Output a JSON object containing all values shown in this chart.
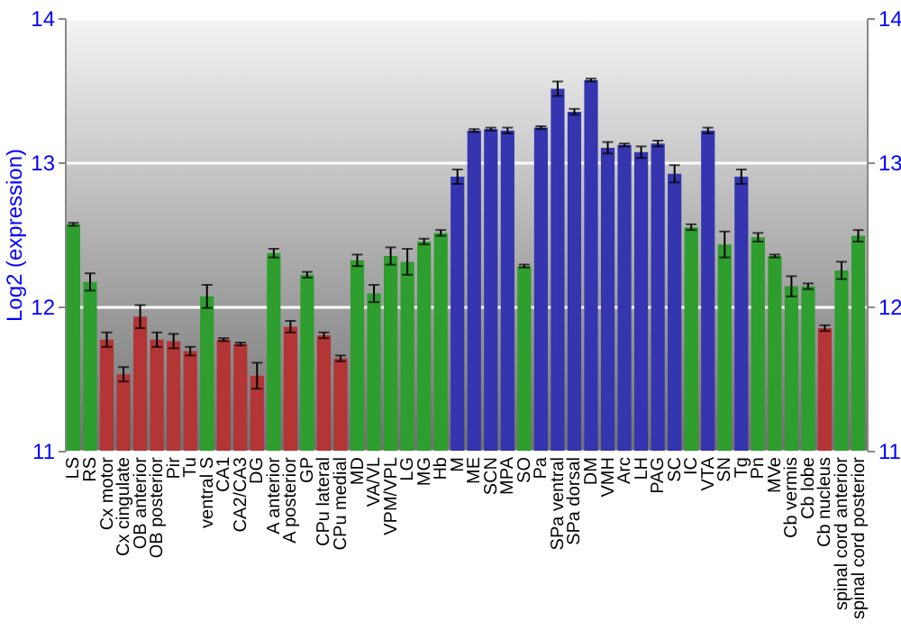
{
  "chart_data": {
    "type": "bar",
    "ylabel": "Log2 (expression)",
    "categories": [
      "LS",
      "RS",
      "Cx motor",
      "Cx cingulate",
      "OB anterior",
      "OB posterior",
      "Pir",
      "Tu",
      "ventral S",
      "CA1",
      "CA2/CA3",
      "DG",
      "A anterior",
      "A posterior",
      "GP",
      "CPu lateral",
      "CPu medial",
      "MD",
      "VA/VL",
      "VPM/VPL",
      "LG",
      "MG",
      "Hb",
      "M",
      "ME",
      "SCN",
      "MPA",
      "SO",
      "Pa",
      "SPa ventral",
      "SPa dorsal",
      "DM",
      "VMH",
      "Arc",
      "LH",
      "PAG",
      "SC",
      "IC",
      "VTA",
      "SN",
      "Tg",
      "Pn",
      "MVe",
      "Cb vermis",
      "Cb lobe",
      "Cb nucleus",
      "spinal cord anterior",
      "spinal cord posterior"
    ],
    "values": [
      12.57,
      12.17,
      11.77,
      11.53,
      11.93,
      11.77,
      11.76,
      11.69,
      12.07,
      11.77,
      11.74,
      11.52,
      12.37,
      11.86,
      12.22,
      11.8,
      11.64,
      12.32,
      12.09,
      12.35,
      12.31,
      12.45,
      12.51,
      12.9,
      13.22,
      13.23,
      13.22,
      12.28,
      13.24,
      13.51,
      13.35,
      13.57,
      13.1,
      13.12,
      13.07,
      13.13,
      12.92,
      12.55,
      13.22,
      12.43,
      12.9,
      12.48,
      12.35,
      12.14,
      12.14,
      11.85,
      12.25,
      12.49
    ],
    "errors": [
      0.01,
      0.06,
      0.05,
      0.05,
      0.08,
      0.05,
      0.05,
      0.03,
      0.08,
      0.01,
      0.01,
      0.09,
      0.03,
      0.04,
      0.02,
      0.02,
      0.02,
      0.04,
      0.06,
      0.06,
      0.09,
      0.02,
      0.02,
      0.05,
      0.01,
      0.01,
      0.02,
      0.01,
      0.01,
      0.05,
      0.02,
      0.01,
      0.04,
      0.01,
      0.04,
      0.02,
      0.06,
      0.02,
      0.02,
      0.09,
      0.05,
      0.03,
      0.01,
      0.07,
      0.02,
      0.02,
      0.06,
      0.04
    ],
    "colors": [
      "#2e9e2e",
      "#2e9e2e",
      "#b33535",
      "#b33535",
      "#b33535",
      "#b33535",
      "#b33535",
      "#b33535",
      "#2e9e2e",
      "#b33535",
      "#b33535",
      "#b33535",
      "#2e9e2e",
      "#b33535",
      "#2e9e2e",
      "#b33535",
      "#b33535",
      "#2e9e2e",
      "#2e9e2e",
      "#2e9e2e",
      "#2e9e2e",
      "#2e9e2e",
      "#2e9e2e",
      "#3535b0",
      "#3535b0",
      "#3535b0",
      "#3535b0",
      "#2e9e2e",
      "#3535b0",
      "#3535b0",
      "#3535b0",
      "#3535b0",
      "#3535b0",
      "#3535b0",
      "#3535b0",
      "#3535b0",
      "#3535b0",
      "#2e9e2e",
      "#3535b0",
      "#2e9e2e",
      "#3535b0",
      "#2e9e2e",
      "#2e9e2e",
      "#2e9e2e",
      "#2e9e2e",
      "#b33535",
      "#2e9e2e",
      "#2e9e2e"
    ],
    "ylim": [
      11,
      14
    ],
    "yticks": [
      11,
      12,
      13,
      14
    ],
    "y2lim": [
      11,
      14
    ],
    "y2ticks": [
      11,
      12,
      13,
      14
    ],
    "grid": "y"
  }
}
